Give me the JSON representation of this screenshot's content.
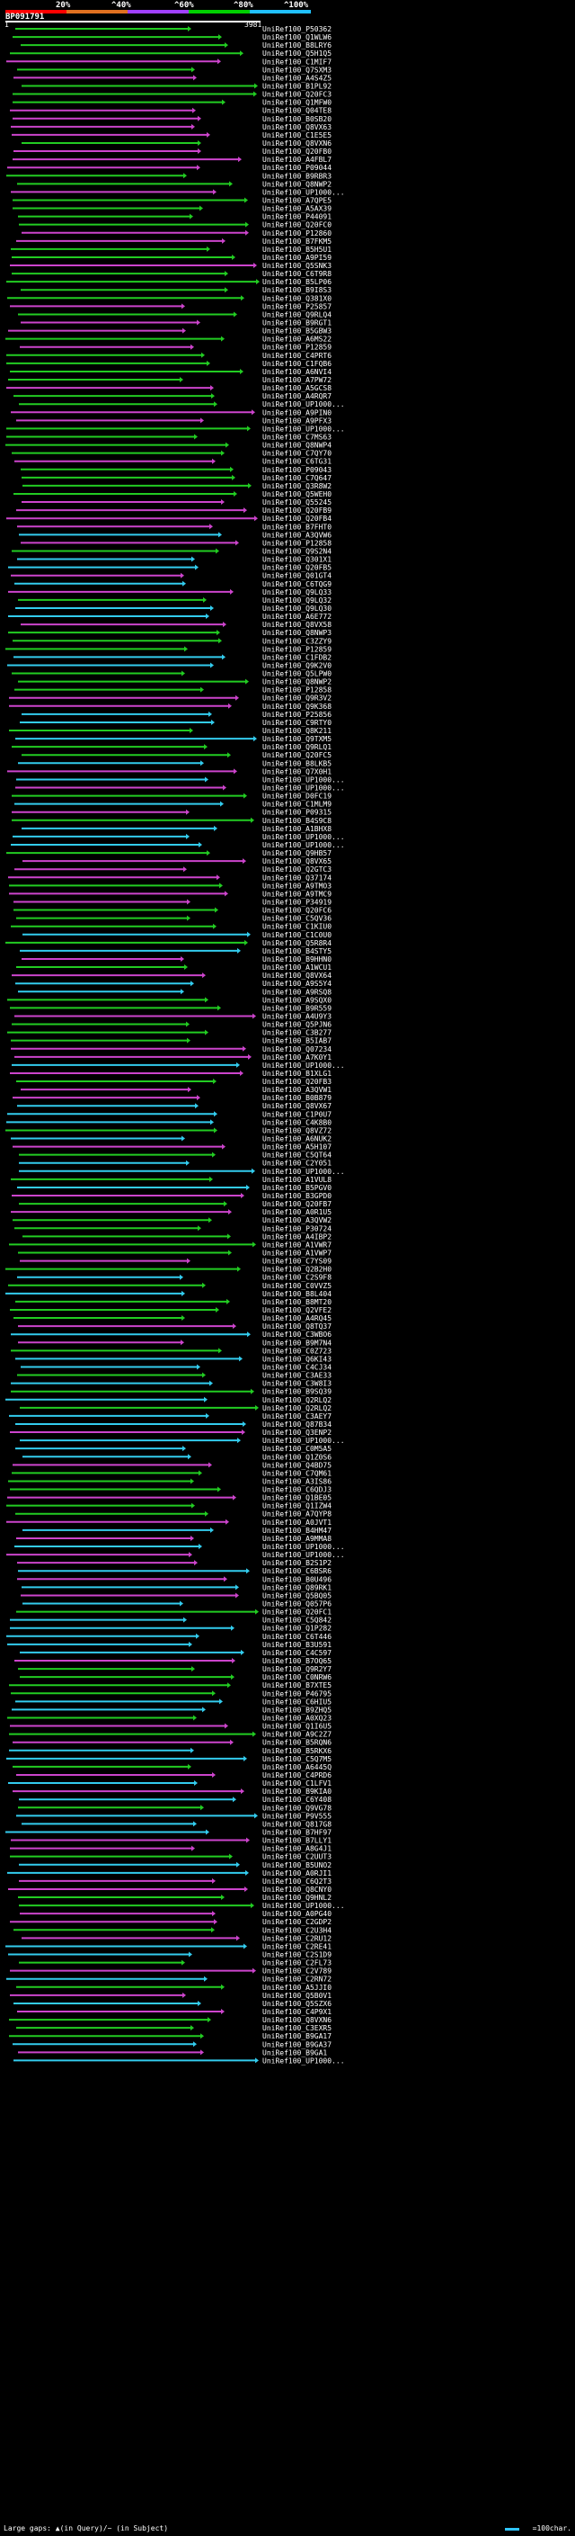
{
  "header": {
    "percent_labels": [
      "20%",
      "^40%",
      "^60%",
      "^80%",
      "^100%"
    ],
    "colors": [
      "#ff0000",
      "#e07020",
      "#a040ff",
      "#00d000",
      "#20c0ff"
    ],
    "query_name": "BP091791",
    "scale_start": "1",
    "scale_end": "3981"
  },
  "footer": {
    "gap_legend": "Large gaps: ▲(in Query)/~ (in Subject)",
    "scale_legend": "=100char."
  },
  "colors": {
    "green": "#22cc22",
    "magenta": "#cc44cc",
    "cyan": "#33ccee",
    "background": "#000000"
  },
  "rows": [
    "UniRef100_P50362",
    "UniRef100_Q1WLW6",
    "UniRef100_B8LRY6",
    "UniRef100_Q5H1Q5",
    "UniRef100_C1MIF7",
    "UniRef100_Q7SXM3",
    "UniRef100_A4S4Z5",
    "UniRef100_B1PL92",
    "UniRef100_Q20FC3",
    "UniRef100_Q1MFW0",
    "UniRef100_Q04TE8",
    "UniRef100_B0SB20",
    "UniRef100_Q8VX63",
    "UniRef100_C1E5E5",
    "UniRef100_Q8VXN6",
    "UniRef100_Q20FB0",
    "UniRef100_A4FBL7",
    "UniRef100_P09044",
    "UniRef100_B9RBR3",
    "UniRef100_Q8NWP2",
    "UniRef100_UP1000...",
    "UniRef100_A7QPE5",
    "UniRef100_A5AX39",
    "UniRef100_P44091",
    "UniRef100_Q20FC0",
    "UniRef100_P12860",
    "UniRef100_B7FKM5",
    "UniRef100_B5H5U1",
    "UniRef100_A9PI59",
    "UniRef100_Q5SNK3",
    "UniRef100_C6T9R8",
    "UniRef100_B5LP06",
    "UniRef100_B9I8S3",
    "UniRef100_Q381X0",
    "UniRef100_P25857",
    "UniRef100_Q9RLQ4",
    "UniRef100_B9RGT1",
    "UniRef100_B5GBW3",
    "UniRef100_A6MS22",
    "UniRef100_P12859",
    "UniRef100_C4PRT6",
    "UniRef100_C1FQB6",
    "UniRef100_A6NVI4",
    "UniRef100_A7PW72",
    "UniRef100_A5GCS8",
    "UniRef100_A4RQR7",
    "UniRef100_UP1000...",
    "UniRef100_A9PIN0",
    "UniRef100_A9PFX3",
    "UniRef100_UP1000...",
    "UniRef100_C7MS63",
    "UniRef100_Q8NWP4",
    "UniRef100_C7QY70",
    "UniRef100_C6TG31",
    "UniRef100_P09043",
    "UniRef100_C7Q647",
    "UniRef100_Q3R8W2",
    "UniRef100_Q5WEH0",
    "UniRef100_Q55245",
    "UniRef100_Q20FB9",
    "UniRef100_Q20FB4",
    "UniRef100_B7FHT0",
    "UniRef100_A3QVW6",
    "UniRef100_P12858",
    "UniRef100_Q9S2N4",
    "UniRef100_Q301X1",
    "UniRef100_Q20FB5",
    "UniRef100_Q01GT4",
    "UniRef100_C6TQG9",
    "UniRef100_Q9LQ33",
    "UniRef100_Q9LQ32",
    "UniRef100_Q9LQ30",
    "UniRef100_A6E772",
    "UniRef100_Q8VX58",
    "UniRef100_Q8NWP3",
    "UniRef100_C3ZZY9",
    "UniRef100_P12859",
    "UniRef100_C1FDB2",
    "UniRef100_Q9K2V0",
    "UniRef100_Q5LPW0",
    "UniRef100_Q8NWP2",
    "UniRef100_P12858",
    "UniRef100_Q9R3V2",
    "UniRef100_Q9K368",
    "UniRef100_P25856",
    "UniRef100_C9RTY0",
    "UniRef100_Q8K211",
    "UniRef100_Q9TXM5",
    "UniRef100_Q9RLQ1",
    "UniRef100_Q20FC5",
    "UniRef100_B8LKB5",
    "UniRef100_Q7X0H1",
    "UniRef100_UP1000...",
    "UniRef100_UP1000...",
    "UniRef100_D0FC19",
    "UniRef100_C1MLM9",
    "UniRef100_P09315",
    "UniRef100_B4S9C8",
    "UniRef100_A1BHX8",
    "UniRef100_UP1000...",
    "UniRef100_UP1000...",
    "UniRef100_Q9HB57",
    "UniRef100_Q8VX65",
    "UniRef100_Q2GTC3",
    "UniRef100_Q37174",
    "UniRef100_A9TMO3",
    "UniRef100_A9TMC9",
    "UniRef100_P34919",
    "UniRef100_Q20FC6",
    "UniRef100_C5QV36",
    "UniRef100_C1KIU0",
    "UniRef100_C1C0U0",
    "UniRef100_Q5R8R4",
    "UniRef100_B4STY5",
    "UniRef100_B9HHN0",
    "UniRef100_A1WCU1",
    "UniRef100_Q8VX64",
    "UniRef100_A9S5Y4",
    "UniRef100_A9RSQ8",
    "UniRef100_A9SQX0",
    "UniRef100_B9R559",
    "UniRef100_A4U9Y3",
    "UniRef100_Q5PJN6",
    "UniRef100_C3B277",
    "UniRef100_B5IAB7",
    "UniRef100_Q07234",
    "UniRef100_A7K0Y1",
    "UniRef100_UP1000...",
    "UniRef100_B1XLG1",
    "UniRef100_Q20FB3",
    "UniRef100_A3QVW1",
    "UniRef100_B0B879",
    "UniRef100_Q8VX67",
    "UniRef100_C1P0U7",
    "UniRef100_C4K8B0",
    "UniRef100_Q8VZ72",
    "UniRef100_A6NUK2",
    "UniRef100_A5H107",
    "UniRef100_C5QT64",
    "UniRef100_C2Y051",
    "UniRef100_UP1000...",
    "UniRef100_A1VUL8",
    "UniRef100_B5PGV0",
    "UniRef100_B3GPD0",
    "UniRef100_Q20FB7",
    "UniRef100_A0R1U5",
    "UniRef100_A3QVW2",
    "UniRef100_P30724",
    "UniRef100_A4IBP2",
    "UniRef100_A1VWR7",
    "UniRef100_A1VWP7",
    "UniRef100_C7YS09",
    "UniRef100_Q2B2H0",
    "UniRef100_C2S9F8",
    "UniRef100_C0VVZ5",
    "UniRef100_B8L404",
    "UniRef100_B8MT20",
    "UniRef100_Q2VFE2",
    "UniRef100_A4RQ45",
    "UniRef100_Q8TQ37",
    "UniRef100_C3WBO6",
    "UniRef100_B9M7N4",
    "UniRef100_C0Z723",
    "UniRef100_Q6KI43",
    "UniRef100_C4CJ34",
    "UniRef100_C3AE33",
    "UniRef100_C3W8I3",
    "UniRef100_B9SQ39",
    "UniRef100_Q2RLQ2",
    "UniRef100_Q2RLQ2",
    "UniRef100_C3AEY7",
    "UniRef100_Q87B34",
    "UniRef100_Q3ENP2",
    "UniRef100_UP1000...",
    "UniRef100_C0M5A5",
    "UniRef100_Q1Z0S6",
    "UniRef100_Q4BD75",
    "UniRef100_C7QM61",
    "UniRef100_A3IS86",
    "UniRef100_C6QDJ3",
    "UniRef100_Q1BE05",
    "UniRef100_Q1IZW4",
    "UniRef100_A7QYP8",
    "UniRef100_A0JVT1",
    "UniRef100_B4HM47",
    "UniRef100_A9MMA8",
    "UniRef100_UP1000...",
    "UniRef100_UP1000...",
    "UniRef100_B2S1P2",
    "UniRef100_C6BSR6",
    "UniRef100_B0U496",
    "UniRef100_Q89RK1",
    "UniRef100_Q5BQ05",
    "UniRef100_Q057P6",
    "UniRef100_Q20FC1",
    "UniRef100_C5Q842",
    "UniRef100_Q1P282",
    "UniRef100_C6T446",
    "UniRef100_B3U591",
    "UniRef100_C4C597",
    "UniRef100_B7OQ65",
    "UniRef100_Q9R2Y7",
    "UniRef100_C0NRW6",
    "UniRef100_B7XTE5",
    "UniRef100_P46795",
    "UniRef100_C6HIU5",
    "UniRef100_B9ZHQ5",
    "UniRef100_A0XQ23",
    "UniRef100_Q1I6U5",
    "UniRef100_A9C2Z7",
    "UniRef100_B5RQN6",
    "UniRef100_B5RKX6",
    "UniRef100_C5Q7M5",
    "UniRef100_A6445Q",
    "UniRef100_C4PRD6",
    "UniRef100_C1LFV1",
    "UniRef100_B9KIA0",
    "UniRef100_C6Y408",
    "UniRef100_Q9VG78",
    "UniRef100_P9V555",
    "UniRef100_Q817G8",
    "UniRef100_B7HF97",
    "UniRef100_B7LLY1",
    "UniRef100_A8G4J1",
    "UniRef100_C2UUT3",
    "UniRef100_B5UNO2",
    "UniRef100_A0RJI1",
    "UniRef100_C6Q2T3",
    "UniRef100_Q8CNY0",
    "UniRef100_Q9HNL2",
    "UniRef100_UP1000...",
    "UniRef100_A0PG40",
    "UniRef100_C2GDP2",
    "UniRef100_C2U3H4",
    "UniRef100_C2RU12",
    "UniRef100_C2RE41",
    "UniRef100_C2S1D9",
    "UniRef100_C2FL73",
    "UniRef100_C2V789",
    "UniRef100_C2RN72",
    "UniRef100_A5JJI0",
    "UniRef100_Q5B0V1",
    "UniRef100_Q5SZX6",
    "UniRef100_C4P9X1",
    "UniRef100_Q8VXN6",
    "UniRef100_C3EXR5",
    "UniRef100_B9GA17",
    "UniRef100_B9GA37",
    "UniRef100_B9GA1",
    "UniRef100_UP1000..."
  ]
}
